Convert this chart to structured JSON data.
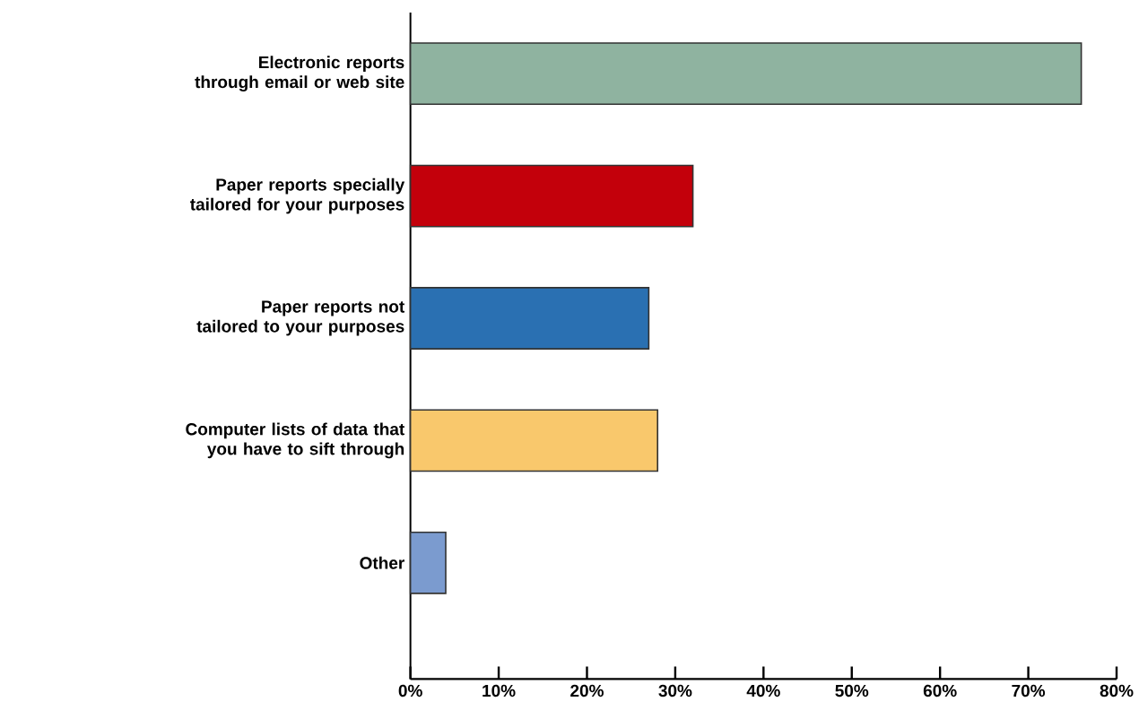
{
  "chart_data": {
    "type": "bar",
    "orientation": "horizontal",
    "categories": [
      "Electronic reports through email or web site",
      "Paper reports specially tailored for your purposes",
      "Paper reports not tailored to your purposes",
      "Computer lists of data that you have to sift through",
      "Other"
    ],
    "values": [
      76,
      32,
      27,
      28,
      4
    ],
    "colors": [
      "#8fb3a0",
      "#c3000b",
      "#2a70b2",
      "#f9c86c",
      "#7b9bcf"
    ],
    "xlim": [
      0,
      80
    ],
    "xticks": [
      {
        "value": 0,
        "label": "0%"
      },
      {
        "value": 10,
        "label": "10%"
      },
      {
        "value": 20,
        "label": "20%"
      },
      {
        "value": 30,
        "label": "30%"
      },
      {
        "value": 40,
        "label": "40%"
      },
      {
        "value": 50,
        "label": "50%"
      },
      {
        "value": 60,
        "label": "60%"
      },
      {
        "value": 70,
        "label": "70%"
      },
      {
        "value": 80,
        "label": "80%"
      }
    ]
  }
}
